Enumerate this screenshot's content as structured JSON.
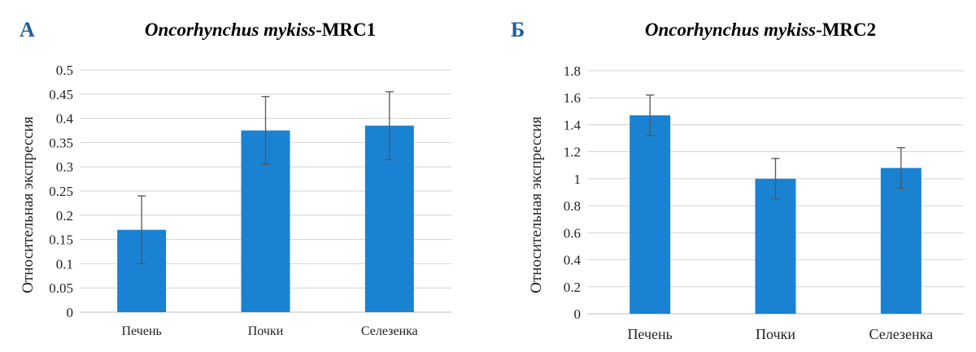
{
  "chart_data": [
    {
      "type": "bar",
      "panel": "А",
      "title_italic": "Oncorhynchus mykiss",
      "title_suffix": "-MRC1",
      "ylabel": "Относительная экспрессия",
      "xlabel": "",
      "categories": [
        "Печень",
        "Почки",
        "Селезенка"
      ],
      "values": [
        0.17,
        0.375,
        0.385
      ],
      "errors": [
        0.07,
        0.07,
        0.07
      ],
      "ylim": [
        0,
        0.5
      ],
      "yticks": [
        "0",
        "0.05",
        "0.1",
        "0.15",
        "0.2",
        "0.25",
        "0.3",
        "0.35",
        "0.4",
        "0.45",
        "0.5"
      ],
      "grid": true,
      "bar_color": "#1a82d3"
    },
    {
      "type": "bar",
      "panel": "Б",
      "title_italic": "Oncorhynchus mykiss",
      "title_suffix": "-MRC2",
      "ylabel": "Относительная экспрессия",
      "xlabel": "",
      "categories": [
        "Печень",
        "Почки",
        "Селезенка"
      ],
      "values": [
        1.47,
        1.0,
        1.08
      ],
      "errors": [
        0.15,
        0.15,
        0.15
      ],
      "ylim": [
        0,
        1.8
      ],
      "yticks": [
        "0",
        "0.2",
        "0.4",
        "0.6",
        "0.8",
        "1",
        "1.2",
        "1.4",
        "1.6",
        "1.8"
      ],
      "grid": true,
      "bar_color": "#1a82d3"
    }
  ]
}
